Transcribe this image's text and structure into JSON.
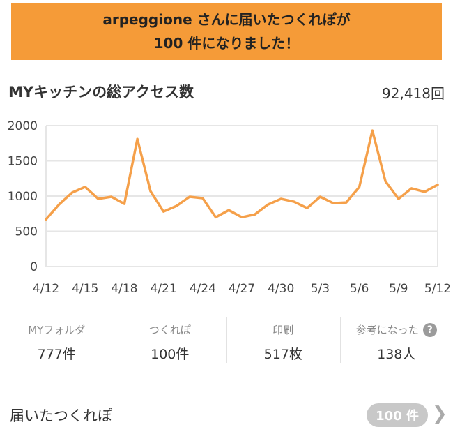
{
  "banner": {
    "line1": "arpeggione さんに届いたつくれぽが",
    "line2": "100 件になりました！"
  },
  "stats": {
    "title": "MYキッチンの総アクセス数",
    "total": "92,418回"
  },
  "counts": [
    {
      "label": "MYフォルダ",
      "value": "777件"
    },
    {
      "label": "つくれぽ",
      "value": "100件"
    },
    {
      "label": "印刷",
      "value": "517枚"
    },
    {
      "label": "参考になった",
      "value": "138人",
      "icon": "question-icon"
    }
  ],
  "tsukurepo": {
    "label": "届いたつくれぽ",
    "badge": "100 件",
    "chevron_icon": "chevron-right-icon"
  },
  "colors": {
    "banner": "#f59b38",
    "line": "#f5a04a",
    "grid": "#e6e6e6"
  },
  "chart_data": {
    "type": "line",
    "title": "",
    "xlabel": "",
    "ylabel": "",
    "ylim": [
      0,
      2000
    ],
    "yticks": [
      0,
      500,
      1000,
      1500,
      2000
    ],
    "xticks": [
      "4/12",
      "4/15",
      "4/18",
      "4/21",
      "4/24",
      "4/27",
      "4/30",
      "5/3",
      "5/6",
      "5/9",
      "5/12"
    ],
    "grid": true,
    "x": [
      "4/12",
      "4/13",
      "4/14",
      "4/15",
      "4/16",
      "4/17",
      "4/18",
      "4/19",
      "4/20",
      "4/21",
      "4/22",
      "4/23",
      "4/24",
      "4/25",
      "4/26",
      "4/27",
      "4/28",
      "4/29",
      "4/30",
      "5/1",
      "5/2",
      "5/3",
      "5/4",
      "5/5",
      "5/6",
      "5/7",
      "5/8",
      "5/9",
      "5/10",
      "5/11",
      "5/12"
    ],
    "series": [
      {
        "values": [
          670,
          880,
          1050,
          1130,
          960,
          990,
          890,
          1810,
          1070,
          780,
          860,
          990,
          970,
          700,
          800,
          700,
          740,
          880,
          960,
          920,
          830,
          990,
          900,
          910,
          1130,
          1930,
          1210,
          960,
          1110,
          1060,
          1160
        ]
      }
    ]
  }
}
